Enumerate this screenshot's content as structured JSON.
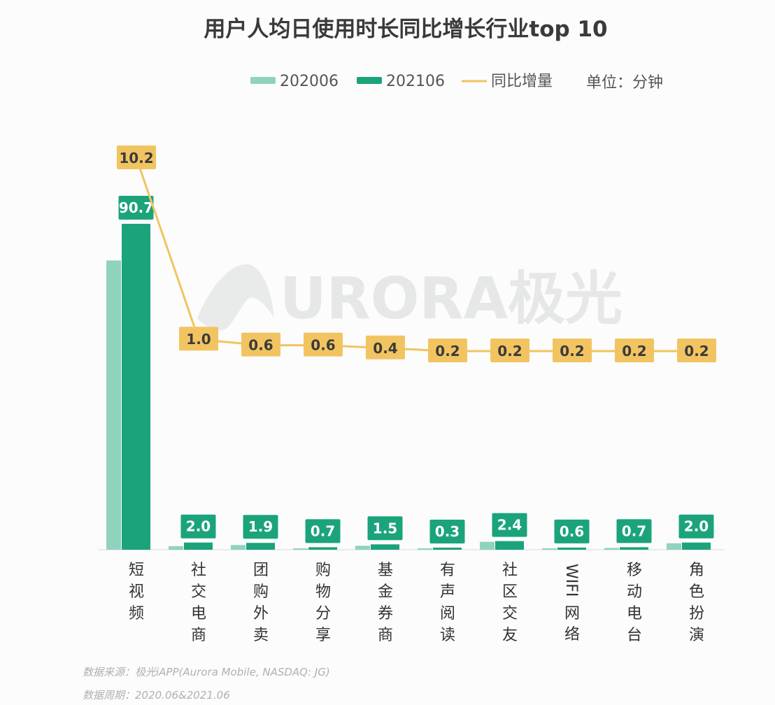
{
  "chart_data": {
    "type": "bar",
    "title": "用户人均日使用时长同比增长行业top 10",
    "unit_label": "单位：分钟",
    "categories": [
      "短视频",
      "社交电商",
      "团购外卖",
      "购物分享",
      "基金券商",
      "有声阅读",
      "社区交友",
      "WIFI网络",
      "移动电台",
      "角色扮演"
    ],
    "series": [
      {
        "name": "202006",
        "kind": "bar",
        "color": "#8fd3be",
        "values": [
          80.5,
          1.0,
          1.3,
          0.1,
          1.1,
          0.1,
          2.2,
          0.4,
          0.5,
          1.8
        ]
      },
      {
        "name": "202106",
        "kind": "bar",
        "color": "#1ba37c",
        "values": [
          90.7,
          2.0,
          1.9,
          0.7,
          1.5,
          0.3,
          2.4,
          0.6,
          0.7,
          2.0
        ]
      },
      {
        "name": "同比增量",
        "kind": "line",
        "color": "#f2c461",
        "values": [
          10.2,
          1.0,
          0.6,
          0.6,
          0.4,
          0.2,
          0.2,
          0.2,
          0.2,
          0.2
        ]
      }
    ],
    "bar_labels": [
      "90.7",
      "2.0",
      "1.9",
      "0.7",
      "1.5",
      "0.3",
      "2.4",
      "0.6",
      "0.7",
      "2.0"
    ],
    "line_labels": [
      "10.2",
      "1.0",
      "0.6",
      "0.6",
      "0.4",
      "0.2",
      "0.2",
      "0.2",
      "0.2",
      "0.2"
    ],
    "legend_position": "top-right",
    "grid": false
  },
  "watermark": "URORA极光",
  "footer": {
    "source": "数据来源：极光iAPP(Aurora Mobile, NASDAQ: JG)",
    "period": "数据周期：2020.06&2021.06"
  }
}
